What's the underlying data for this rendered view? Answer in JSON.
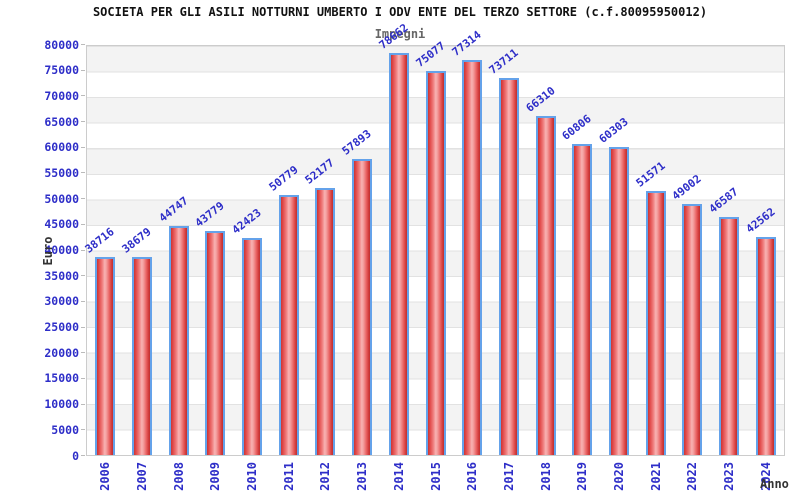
{
  "chart_data": {
    "type": "bar",
    "title": "SOCIETA PER GLI ASILI NOTTURNI UMBERTO I ODV ENTE DEL TERZO SETTORE (c.f.80095950012)",
    "subtitle": "Impegni",
    "xlabel": "Anno",
    "ylabel": "Euro",
    "categories": [
      "2006",
      "2007",
      "2008",
      "2009",
      "2010",
      "2011",
      "2012",
      "2013",
      "2014",
      "2015",
      "2016",
      "2017",
      "2018",
      "2019",
      "2020",
      "2021",
      "2022",
      "2023",
      "2024"
    ],
    "values": [
      38716,
      38679,
      44747,
      43779,
      42423,
      50779,
      52177,
      57893,
      78662,
      75077,
      77314,
      73711,
      66310,
      60806,
      60303,
      51571,
      49002,
      46587,
      42562
    ],
    "ylim": [
      0,
      80000
    ],
    "yticks": [
      0,
      5000,
      10000,
      15000,
      20000,
      25000,
      30000,
      35000,
      40000,
      45000,
      50000,
      55000,
      60000,
      65000,
      70000,
      75000,
      80000
    ],
    "grid": true,
    "legend": "none",
    "band_colors": [
      "#f3f3f3",
      "#ffffff"
    ],
    "bar_fill_color": "#e05050",
    "bar_border_color": "#64a2ea",
    "value_label_color": "#2e2ec8",
    "axis_label_color": "#2e2ec8",
    "title_color": "#111111",
    "subtitle_color": "#666666"
  }
}
